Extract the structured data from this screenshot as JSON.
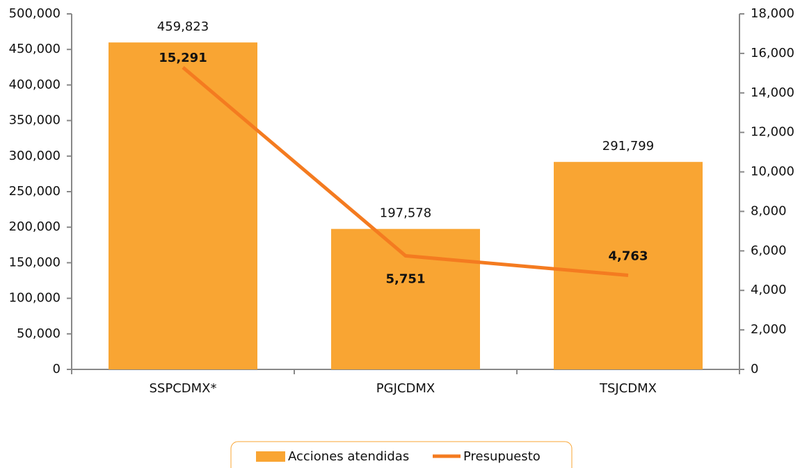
{
  "chart_data": {
    "type": "bar_line",
    "categories": [
      "SSPCDMX*",
      "PGJCDMX",
      "TSJCDMX"
    ],
    "series": [
      {
        "name": "Acciones atendidas",
        "type": "bar",
        "color": "#f9a533",
        "axis": "y",
        "values": [
          459823,
          197578,
          291799
        ],
        "value_labels": [
          "459,823",
          "197,578",
          "291,799"
        ]
      },
      {
        "name": "Presupuesto",
        "type": "line",
        "color": "#f47b20",
        "axis": "y2",
        "values": [
          15291,
          5751,
          4763
        ],
        "value_labels": [
          "15,291",
          "5,751",
          "4,763"
        ]
      }
    ],
    "ylim": [
      0,
      500000
    ],
    "yticks": [
      0,
      {
        "value": 50000,
        "label": "50,000"
      },
      {
        "value": 100000,
        "label": "100,000"
      },
      {
        "value": 150000,
        "label": "150,000"
      },
      {
        "value": 200000,
        "label": "200,000"
      },
      {
        "value": 250000,
        "label": "250,000"
      },
      {
        "value": 300000,
        "label": "300,000"
      },
      {
        "value": 350000,
        "label": "350,000"
      },
      {
        "value": 400000,
        "label": "400,000"
      },
      {
        "value": 450000,
        "label": "450,000"
      },
      {
        "value": 500000,
        "label": "500,000"
      }
    ],
    "y2lim": [
      0,
      18000
    ],
    "y2ticks": [
      0,
      {
        "value": 2000,
        "label": "2,000"
      },
      {
        "value": 4000,
        "label": "4,000"
      },
      {
        "value": 6000,
        "label": "6,000"
      },
      {
        "value": 8000,
        "label": "8,000"
      },
      {
        "value": 10000,
        "label": "10,000"
      },
      {
        "value": 12000,
        "label": "12,000"
      },
      {
        "value": 14000,
        "label": "14,000"
      },
      {
        "value": 16000,
        "label": "16,000"
      },
      {
        "value": 18000,
        "label": "18,000"
      }
    ],
    "legend": "bottom"
  }
}
